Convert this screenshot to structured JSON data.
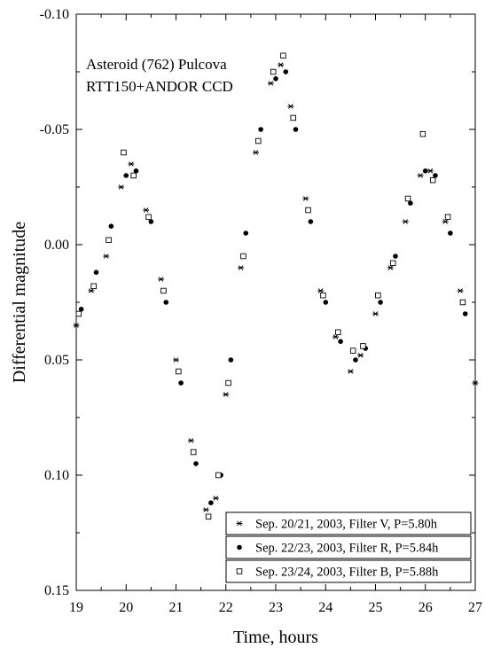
{
  "chart_data": {
    "type": "scatter",
    "title": "",
    "annotation_lines": [
      "Asteroid (762) Pulcova",
      "RTT150+ANDOR CCD"
    ],
    "xlabel": "Time, hours",
    "ylabel": "Differential magnitude",
    "xlim": [
      19,
      27
    ],
    "ylim": [
      0.15,
      -0.1
    ],
    "y_inverted": true,
    "xticks": [
      19,
      20,
      21,
      22,
      23,
      24,
      25,
      26,
      27
    ],
    "xtick_labels": [
      "19",
      "20",
      "21",
      "22",
      "23",
      "24",
      "25",
      "26",
      "27"
    ],
    "yticks": [
      -0.1,
      -0.05,
      0.0,
      0.05,
      0.1,
      0.15
    ],
    "ytick_labels": [
      "-0.10",
      "-0.05",
      "0.00",
      "0.05",
      "0.10",
      "0.15"
    ],
    "grid": false,
    "legend_position": "bottom-right",
    "series": [
      {
        "name": "Sep. 20/21, 2003, Filter V, P=5.80h",
        "marker": "asterisk",
        "x": [
          19.0,
          19.3,
          19.6,
          19.9,
          20.1,
          20.4,
          20.7,
          21.0,
          21.3,
          21.6,
          21.8,
          22.0,
          22.3,
          22.6,
          22.9,
          23.1,
          23.3,
          23.6,
          23.9,
          24.2,
          24.5,
          24.7,
          25.0,
          25.3,
          25.6,
          25.9,
          26.1,
          26.4,
          26.7,
          27.0
        ],
        "y": [
          0.035,
          0.02,
          0.005,
          -0.025,
          -0.035,
          -0.015,
          0.015,
          0.05,
          0.085,
          0.115,
          0.11,
          0.065,
          0.01,
          -0.04,
          -0.07,
          -0.078,
          -0.06,
          -0.02,
          0.02,
          0.04,
          0.055,
          0.048,
          0.03,
          0.01,
          -0.01,
          -0.03,
          -0.032,
          -0.01,
          0.02,
          0.06
        ]
      },
      {
        "name": "Sep. 22/23, 2003, Filter R, P=5.84h",
        "marker": "filled-circle",
        "x": [
          19.1,
          19.4,
          19.7,
          20.0,
          20.2,
          20.5,
          20.8,
          21.1,
          21.4,
          21.7,
          21.9,
          22.1,
          22.4,
          22.7,
          23.0,
          23.2,
          23.4,
          23.7,
          24.0,
          24.3,
          24.6,
          24.8,
          25.1,
          25.4,
          25.7,
          26.0,
          26.2,
          26.5,
          26.8
        ],
        "y": [
          0.028,
          0.012,
          -0.008,
          -0.03,
          -0.032,
          -0.01,
          0.025,
          0.06,
          0.095,
          0.112,
          0.1,
          0.05,
          -0.005,
          -0.05,
          -0.072,
          -0.075,
          -0.05,
          -0.01,
          0.025,
          0.042,
          0.05,
          0.045,
          0.025,
          0.005,
          -0.018,
          -0.032,
          -0.03,
          -0.005,
          0.03
        ]
      },
      {
        "name": "Sep. 23/24, 2003, Filter B, P=5.88h",
        "marker": "open-square",
        "x": [
          19.05,
          19.35,
          19.65,
          19.95,
          20.15,
          20.45,
          20.75,
          21.05,
          21.35,
          21.65,
          21.85,
          22.05,
          22.35,
          22.65,
          22.95,
          23.15,
          23.35,
          23.65,
          23.95,
          24.25,
          24.55,
          24.75,
          25.05,
          25.35,
          25.65,
          25.95,
          26.15,
          26.45,
          26.75
        ],
        "y": [
          0.03,
          0.018,
          -0.002,
          -0.04,
          -0.03,
          -0.012,
          0.02,
          0.055,
          0.09,
          0.118,
          0.1,
          0.06,
          0.005,
          -0.045,
          -0.075,
          -0.082,
          -0.055,
          -0.015,
          0.022,
          0.038,
          0.046,
          0.044,
          0.022,
          0.008,
          -0.02,
          -0.048,
          -0.028,
          -0.012,
          0.025
        ]
      }
    ]
  }
}
